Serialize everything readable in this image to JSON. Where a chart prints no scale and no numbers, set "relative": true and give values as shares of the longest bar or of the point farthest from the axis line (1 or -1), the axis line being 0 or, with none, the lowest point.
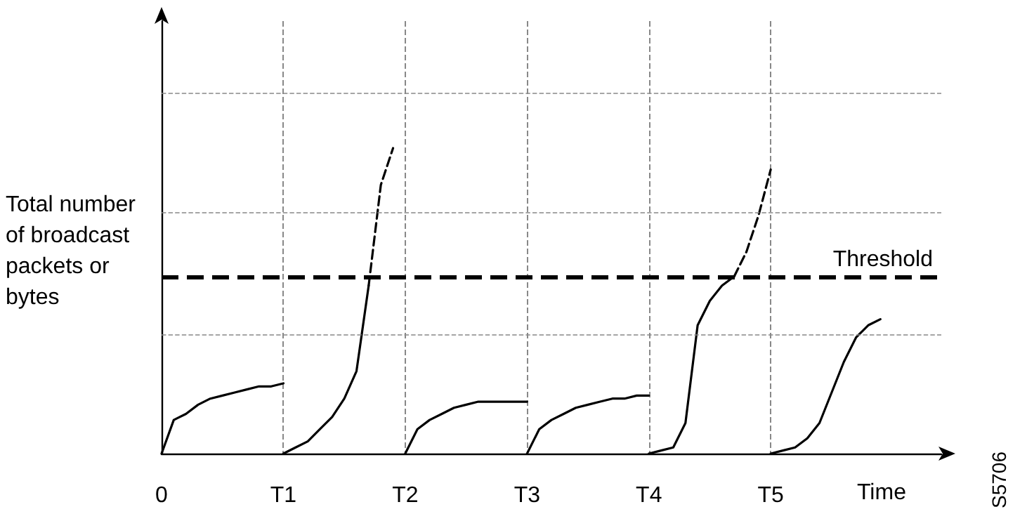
{
  "chart_data": {
    "type": "line",
    "relative": true,
    "ylabel": "Total number of broadcast packets or bytes",
    "xlabel": "Time",
    "categories": [
      "0",
      null,
      null,
      null,
      null,
      null,
      null,
      null,
      null,
      null,
      "T1",
      null,
      null,
      null,
      null,
      null,
      null,
      null,
      null,
      null,
      "T2",
      null,
      null,
      null,
      null,
      null,
      null,
      null,
      null,
      null,
      "T3",
      null,
      null,
      null,
      null,
      null,
      null,
      null,
      null,
      null,
      "T4",
      null,
      null,
      null,
      null,
      null,
      null,
      null,
      null,
      null,
      "T5",
      null,
      null,
      null,
      null,
      null,
      null,
      null,
      null,
      null,
      null,
      null,
      null,
      null,
      null
    ],
    "grid": "x",
    "marker": "none",
    "legend": false,
    "annotations": [
      "S5706"
    ],
    "ref_lines": [
      {
        "axis": "y",
        "value": 0.39,
        "label": null,
        "color": "#888888",
        "line_style": "dashed"
      },
      {
        "axis": "y",
        "value": 0.79,
        "label": null,
        "color": "#888888",
        "line_style": "dashed"
      },
      {
        "axis": "y",
        "value": 1.18,
        "label": null,
        "color": "#888888",
        "line_style": "dashed"
      },
      {
        "axis": "y",
        "value": 0.58,
        "label": "Threshold",
        "color": "#000000",
        "line_style": "dashed"
      }
    ],
    "series": [
      {
        "color": "#000000",
        "line_style": "solid",
        "values": [
          0,
          0.11,
          0.13,
          0.16,
          0.18,
          0.19,
          0.2,
          0.21,
          0.22,
          0.22,
          0.23,
          null,
          null,
          null,
          null,
          null,
          null,
          null,
          null,
          null,
          null,
          null,
          null,
          null,
          null,
          null,
          null,
          null,
          null,
          null,
          null,
          null,
          null,
          null,
          null,
          null,
          null,
          null,
          null,
          null,
          null,
          null,
          null,
          null,
          null,
          null,
          null,
          null,
          null,
          null,
          null,
          null,
          null,
          null,
          null,
          null,
          null,
          null,
          null,
          null,
          null,
          null,
          null,
          null,
          null
        ]
      },
      {
        "color": "#000000",
        "line_style": "solid",
        "values": [
          null,
          null,
          null,
          null,
          null,
          null,
          null,
          null,
          null,
          null,
          0,
          0.02,
          0.04,
          0.08,
          0.12,
          0.18,
          0.27,
          0.55,
          null,
          null,
          null,
          null,
          null,
          null,
          null,
          null,
          null,
          null,
          null,
          null,
          null,
          null,
          null,
          null,
          null,
          null,
          null,
          null,
          null,
          null,
          null,
          null,
          null,
          null,
          null,
          null,
          null,
          null,
          null,
          null,
          null,
          null,
          null,
          null,
          null,
          null,
          null,
          null,
          null,
          null,
          null,
          null,
          null,
          null,
          null
        ]
      },
      {
        "color": "#000000",
        "line_style": "dashed",
        "values": [
          null,
          null,
          null,
          null,
          null,
          null,
          null,
          null,
          null,
          null,
          null,
          null,
          null,
          null,
          null,
          null,
          null,
          0.55,
          0.88,
          1.0,
          null,
          null,
          null,
          null,
          null,
          null,
          null,
          null,
          null,
          null,
          null,
          null,
          null,
          null,
          null,
          null,
          null,
          null,
          null,
          null,
          null,
          null,
          null,
          null,
          null,
          null,
          null,
          null,
          null,
          null,
          null,
          null,
          null,
          null,
          null,
          null,
          null,
          null,
          null,
          null,
          null,
          null,
          null,
          null,
          null
        ]
      },
      {
        "color": "#000000",
        "line_style": "solid",
        "values": [
          null,
          null,
          null,
          null,
          null,
          null,
          null,
          null,
          null,
          null,
          null,
          null,
          null,
          null,
          null,
          null,
          null,
          null,
          null,
          null,
          0,
          0.08,
          0.11,
          0.13,
          0.15,
          0.16,
          0.17,
          0.17,
          0.17,
          0.17,
          0.17,
          null,
          null,
          null,
          null,
          null,
          null,
          null,
          null,
          null,
          null,
          null,
          null,
          null,
          null,
          null,
          null,
          null,
          null,
          null,
          null,
          null,
          null,
          null,
          null,
          null,
          null,
          null,
          null,
          null,
          null,
          null,
          null,
          null,
          null
        ]
      },
      {
        "color": "#000000",
        "line_style": "solid",
        "values": [
          null,
          null,
          null,
          null,
          null,
          null,
          null,
          null,
          null,
          null,
          null,
          null,
          null,
          null,
          null,
          null,
          null,
          null,
          null,
          null,
          null,
          null,
          null,
          null,
          null,
          null,
          null,
          null,
          null,
          null,
          0,
          0.08,
          0.11,
          0.13,
          0.15,
          0.16,
          0.17,
          0.18,
          0.18,
          0.19,
          0.19,
          null,
          null,
          null,
          null,
          null,
          null,
          null,
          null,
          null,
          null,
          null,
          null,
          null,
          null,
          null,
          null,
          null,
          null,
          null,
          null,
          null,
          null,
          null,
          null
        ]
      },
      {
        "color": "#000000",
        "line_style": "solid",
        "values": [
          null,
          null,
          null,
          null,
          null,
          null,
          null,
          null,
          null,
          null,
          null,
          null,
          null,
          null,
          null,
          null,
          null,
          null,
          null,
          null,
          null,
          null,
          null,
          null,
          null,
          null,
          null,
          null,
          null,
          null,
          null,
          null,
          null,
          null,
          null,
          null,
          null,
          null,
          null,
          null,
          0,
          0.01,
          0.02,
          0.1,
          0.42,
          0.5,
          0.55,
          0.58,
          null,
          null,
          null,
          null,
          null,
          null,
          null,
          null,
          null,
          null,
          null,
          null,
          null,
          null,
          null,
          null,
          null
        ]
      },
      {
        "color": "#000000",
        "line_style": "dashed",
        "values": [
          null,
          null,
          null,
          null,
          null,
          null,
          null,
          null,
          null,
          null,
          null,
          null,
          null,
          null,
          null,
          null,
          null,
          null,
          null,
          null,
          null,
          null,
          null,
          null,
          null,
          null,
          null,
          null,
          null,
          null,
          null,
          null,
          null,
          null,
          null,
          null,
          null,
          null,
          null,
          null,
          null,
          null,
          null,
          null,
          null,
          null,
          null,
          0.58,
          0.66,
          0.78,
          0.93,
          null,
          null,
          null,
          null,
          null,
          null,
          null,
          null,
          null,
          null,
          null,
          null,
          null,
          null
        ]
      },
      {
        "color": "#000000",
        "line_style": "solid",
        "values": [
          null,
          null,
          null,
          null,
          null,
          null,
          null,
          null,
          null,
          null,
          null,
          null,
          null,
          null,
          null,
          null,
          null,
          null,
          null,
          null,
          null,
          null,
          null,
          null,
          null,
          null,
          null,
          null,
          null,
          null,
          null,
          null,
          null,
          null,
          null,
          null,
          null,
          null,
          null,
          null,
          null,
          null,
          null,
          null,
          null,
          null,
          null,
          null,
          null,
          null,
          0,
          0.01,
          0.02,
          0.05,
          0.1,
          0.2,
          0.3,
          0.38,
          0.42,
          0.44,
          null,
          null,
          null,
          null,
          null
        ]
      }
    ]
  }
}
